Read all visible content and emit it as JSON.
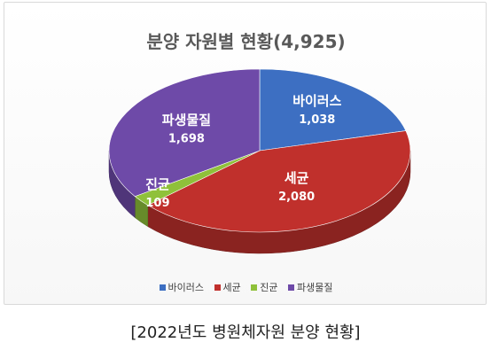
{
  "chart_data": {
    "type": "pie",
    "title": "분양 자원별 현황(4,925)",
    "categories": [
      "바이러스",
      "세균",
      "진균",
      "파생물질"
    ],
    "values": [
      1038,
      2080,
      109,
      1698
    ],
    "value_labels": [
      "1,038",
      "2,080",
      "109",
      "1,698"
    ],
    "colors": [
      "#3d6fc2",
      "#c0302c",
      "#8fc13a",
      "#6e4aa8"
    ],
    "legend_position": "bottom",
    "style": "3d"
  },
  "caption": "[2022년도 병원체자원 분양 현황]"
}
